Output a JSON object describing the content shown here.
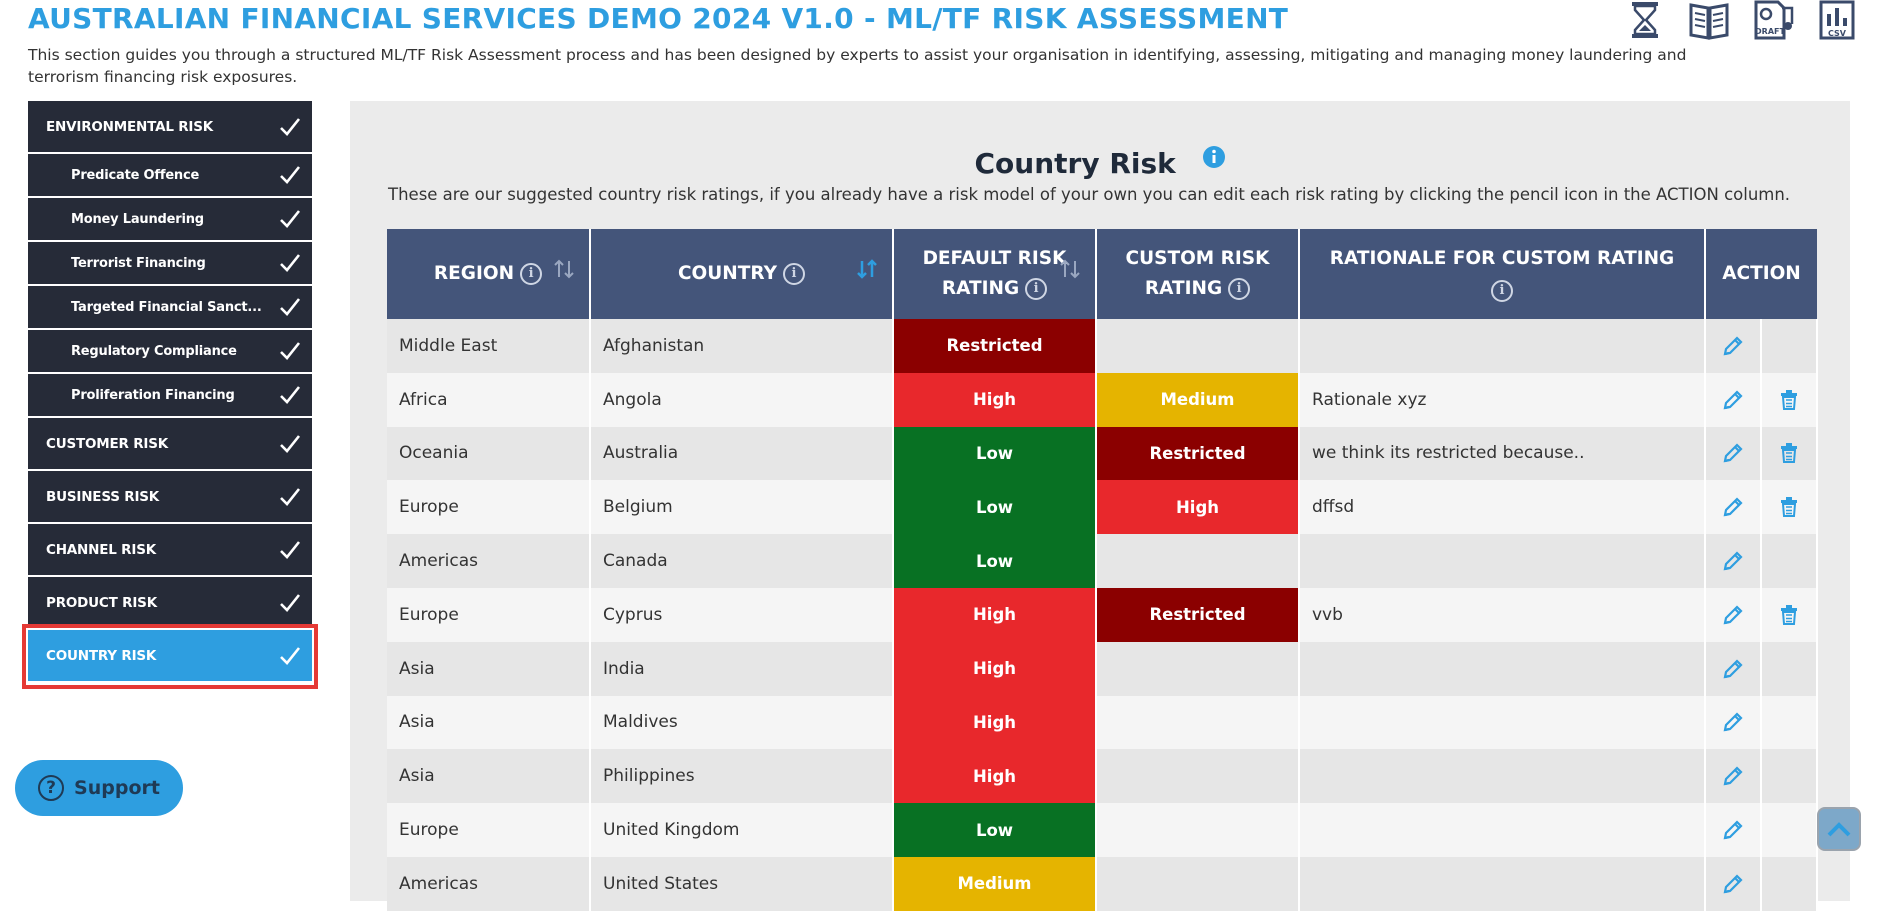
{
  "header": {
    "title": "AUSTRALIAN FINANCIAL SERVICES DEMO 2024 V1.0 - ML/TF RISK ASSESSMENT",
    "intro": "This section guides you through a structured ML/TF Risk Assessment process and has been designed by experts to assist your organisation in identifying, assessing, mitigating and managing money laundering and terrorism financing risk exposures.",
    "icons": [
      "hourglass-icon",
      "book-icon",
      "draft-document-icon",
      "csv-chart-icon"
    ],
    "csv_label": "CSV",
    "draft_label": "DRAFT"
  },
  "sidebar": {
    "items": [
      {
        "label": "ENVIRONMENTAL RISK",
        "type": "section",
        "checked": true
      },
      {
        "label": "Predicate Offence",
        "type": "sub",
        "checked": true
      },
      {
        "label": "Money Laundering",
        "type": "sub",
        "checked": true
      },
      {
        "label": "Terrorist Financing",
        "type": "sub",
        "checked": true
      },
      {
        "label": "Targeted Financial Sanct...",
        "type": "sub",
        "checked": true
      },
      {
        "label": "Regulatory Compliance",
        "type": "sub",
        "checked": true
      },
      {
        "label": "Proliferation Financing",
        "type": "sub",
        "checked": true
      },
      {
        "label": "CUSTOMER RISK",
        "type": "section",
        "checked": true
      },
      {
        "label": "BUSINESS RISK",
        "type": "section",
        "checked": true
      },
      {
        "label": "CHANNEL RISK",
        "type": "section",
        "checked": true
      },
      {
        "label": "PRODUCT RISK",
        "type": "section",
        "checked": true
      },
      {
        "label": "COUNTRY RISK",
        "type": "section",
        "checked": true,
        "active": true
      }
    ],
    "support_label": "Support"
  },
  "main": {
    "title": "Country Risk",
    "description": "These are our suggested country risk ratings, if you already have a risk model of your own you can edit each risk rating by clicking the pencil icon in the ACTION column.",
    "columns": {
      "region": "REGION",
      "country": "COUNTRY",
      "default_rating_1": "DEFAULT RISK",
      "default_rating_2": "RATING",
      "custom_rating_1": "CUSTOM RISK",
      "custom_rating_2": "RATING",
      "rationale": "RATIONALE FOR CUSTOM RATING",
      "action": "ACTION"
    },
    "rows": [
      {
        "region": "Middle East",
        "country": "Afghanistan",
        "default": "Restricted",
        "custom": "",
        "rationale": "",
        "can_delete": false
      },
      {
        "region": "Africa",
        "country": "Angola",
        "default": "High",
        "custom": "Medium",
        "rationale": "Rationale xyz",
        "can_delete": true
      },
      {
        "region": "Oceania",
        "country": "Australia",
        "default": "Low",
        "custom": "Restricted",
        "rationale": "we think its restricted because..",
        "can_delete": true
      },
      {
        "region": "Europe",
        "country": "Belgium",
        "default": "Low",
        "custom": "High",
        "rationale": "dffsd",
        "can_delete": true
      },
      {
        "region": "Americas",
        "country": "Canada",
        "default": "Low",
        "custom": "",
        "rationale": "",
        "can_delete": false
      },
      {
        "region": "Europe",
        "country": "Cyprus",
        "default": "High",
        "custom": "Restricted",
        "rationale": "vvb",
        "can_delete": true
      },
      {
        "region": "Asia",
        "country": "India",
        "default": "High",
        "custom": "",
        "rationale": "",
        "can_delete": false
      },
      {
        "region": "Asia",
        "country": "Maldives",
        "default": "High",
        "custom": "",
        "rationale": "",
        "can_delete": false
      },
      {
        "region": "Asia",
        "country": "Philippines",
        "default": "High",
        "custom": "",
        "rationale": "",
        "can_delete": false
      },
      {
        "region": "Europe",
        "country": "United Kingdom",
        "default": "Low",
        "custom": "",
        "rationale": "",
        "can_delete": false
      },
      {
        "region": "Americas",
        "country": "United States",
        "default": "Medium",
        "custom": "",
        "rationale": "",
        "can_delete": false
      }
    ]
  },
  "colors": {
    "brand_blue": "#2e9ee0",
    "sidebar_dark": "#262b38",
    "header_slate": "#44557a",
    "restricted": "#8b0000",
    "high": "#e8282c",
    "low": "#087123",
    "medium": "#e5b400",
    "action_blue": "#2e9ee0"
  }
}
